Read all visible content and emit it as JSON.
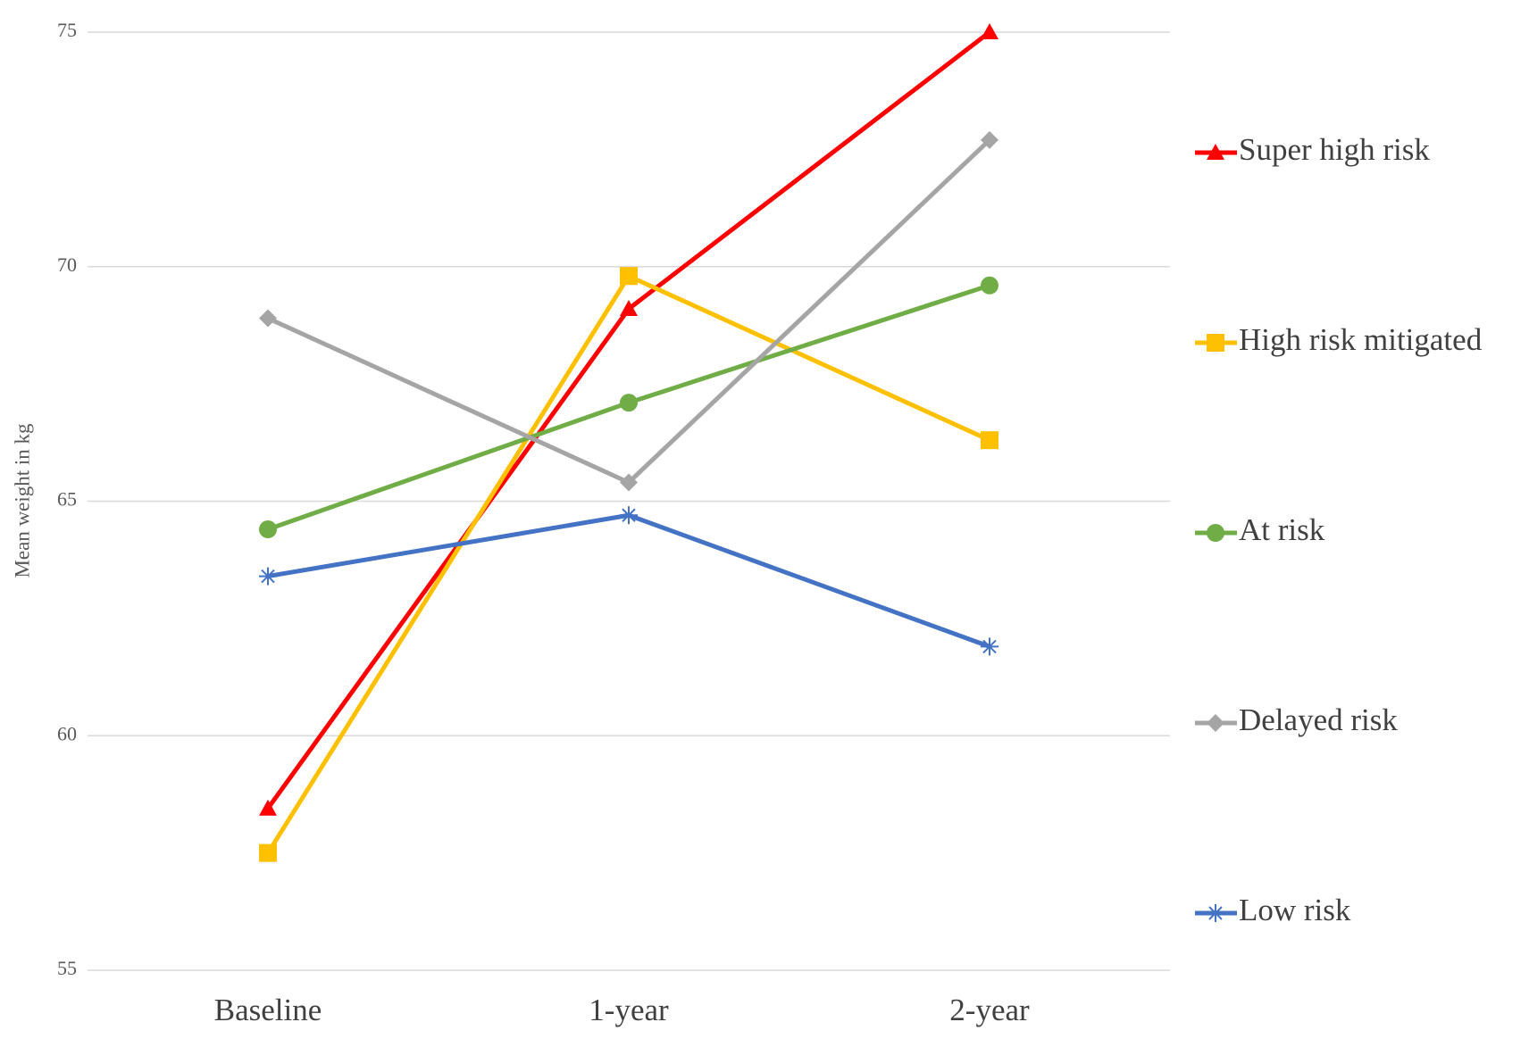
{
  "chart_data": {
    "type": "line",
    "y_label": "Mean weight in kg",
    "categories": [
      "Baseline",
      "1-year",
      "2-year"
    ],
    "ylim": [
      55,
      75
    ],
    "yticks": [
      55,
      60,
      65,
      70,
      75
    ],
    "grid": true,
    "legend": "right",
    "series": [
      {
        "name": "Super high risk",
        "color": "#ff0000",
        "marker": "triangle",
        "values": [
          58.45,
          69.1,
          75.0
        ]
      },
      {
        "name": "High risk mitigated",
        "color": "#ffc000",
        "marker": "square",
        "values": [
          57.5,
          69.8,
          66.3
        ]
      },
      {
        "name": "At risk",
        "color": "#70ad47",
        "marker": "circle",
        "values": [
          64.4,
          67.1,
          69.6
        ]
      },
      {
        "name": "Delayed risk",
        "color": "#a5a5a5",
        "marker": "diamond",
        "values": [
          68.9,
          65.4,
          72.7
        ]
      },
      {
        "name": "Low risk",
        "color": "#4472c4",
        "marker": "star",
        "values": [
          63.4,
          64.7,
          61.9
        ]
      }
    ]
  }
}
